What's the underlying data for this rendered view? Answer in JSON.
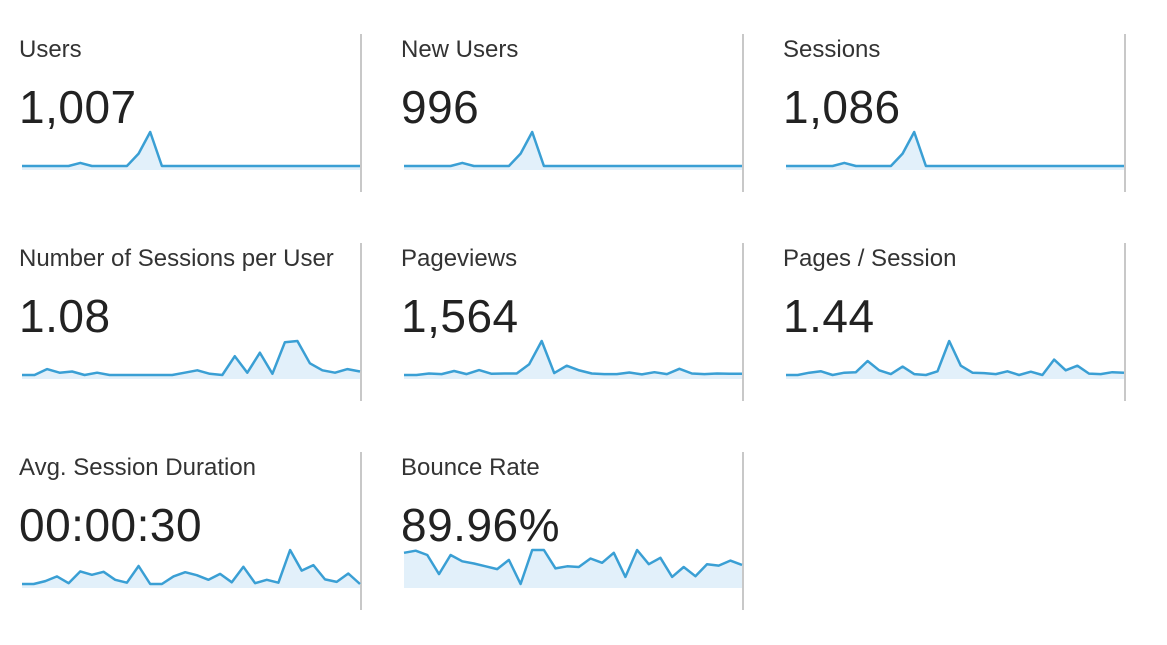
{
  "colors": {
    "line": "#3a9fd4",
    "fill": "#e2f0fa",
    "divider": "#c8c8c8"
  },
  "metrics": [
    {
      "label": "Users",
      "value": "1,007",
      "spark": [
        0,
        0,
        0,
        0,
        0,
        1,
        0,
        0,
        0,
        0,
        4,
        11,
        0,
        0,
        0,
        0,
        0,
        0,
        0,
        0,
        0,
        0,
        0,
        0,
        0,
        0,
        0,
        0,
        0,
        0
      ]
    },
    {
      "label": "New Users",
      "value": "996",
      "spark": [
        0,
        0,
        0,
        0,
        0,
        1,
        0,
        0,
        0,
        0,
        4,
        11,
        0,
        0,
        0,
        0,
        0,
        0,
        0,
        0,
        0,
        0,
        0,
        0,
        0,
        0,
        0,
        0,
        0,
        0
      ]
    },
    {
      "label": "Sessions",
      "value": "1,086",
      "spark": [
        0,
        0,
        0,
        0,
        0,
        1,
        0,
        0,
        0,
        0,
        4,
        11,
        0,
        0,
        0,
        0,
        0,
        0,
        0,
        0,
        0,
        0,
        0,
        0,
        0,
        0,
        0,
        0,
        0,
        0
      ]
    },
    {
      "label": "Number of Sessions per User",
      "value": "1.08",
      "spark": [
        2,
        2,
        2.5,
        2.2,
        2.3,
        2,
        2.2,
        2,
        2,
        2,
        2,
        2,
        2,
        2.2,
        2.4,
        2.1,
        2,
        3.6,
        2.2,
        3.9,
        2.1,
        4.8,
        4.9,
        3,
        2.4,
        2.2,
        2.5,
        2.3
      ]
    },
    {
      "label": "Pageviews",
      "value": "1,564",
      "spark": [
        0,
        0,
        0.5,
        0.3,
        1.3,
        0.3,
        1.6,
        0.4,
        0.5,
        0.5,
        3.5,
        11,
        0.6,
        3,
        1.5,
        0.5,
        0.3,
        0.3,
        0.8,
        0.2,
        0.9,
        0.3,
        2,
        0.5,
        0.3,
        0.5,
        0.4,
        0.4
      ]
    },
    {
      "label": "Pages / Session",
      "value": "1.44",
      "spark": [
        1,
        1,
        1.5,
        1.8,
        1,
        1.5,
        1.6,
        4,
        2,
        1.2,
        2.8,
        1.2,
        1,
        1.8,
        8.3,
        3,
        1.5,
        1.4,
        1.2,
        1.8,
        1,
        1.7,
        1,
        4.3,
        2,
        3,
        1.3,
        1.2,
        1.6,
        1.5
      ]
    },
    {
      "label": "Avg. Session Duration",
      "value": "00:00:30",
      "spark": [
        0,
        0,
        0.7,
        1.8,
        0.2,
        3,
        2.2,
        2.9,
        1,
        0.3,
        4.3,
        0,
        0,
        1.8,
        2.8,
        2.1,
        1,
        2.4,
        0.4,
        4.1,
        0.2,
        1,
        0.3,
        8.1,
        3.2,
        4.5,
        1.1,
        0.5,
        2.5,
        0
      ]
    },
    {
      "label": "Bounce Rate",
      "value": "89.96%",
      "spark": [
        7,
        7.3,
        6.7,
        4,
        6.7,
        5.8,
        5.5,
        5.1,
        4.7,
        6,
        2.6,
        7.4,
        7.4,
        4.8,
        5.1,
        5,
        6.2,
        5.6,
        7,
        3.6,
        7.4,
        5.4,
        6.3,
        3.6,
        5,
        3.7,
        5.4,
        5.2,
        5.9,
        5.3
      ]
    }
  ]
}
